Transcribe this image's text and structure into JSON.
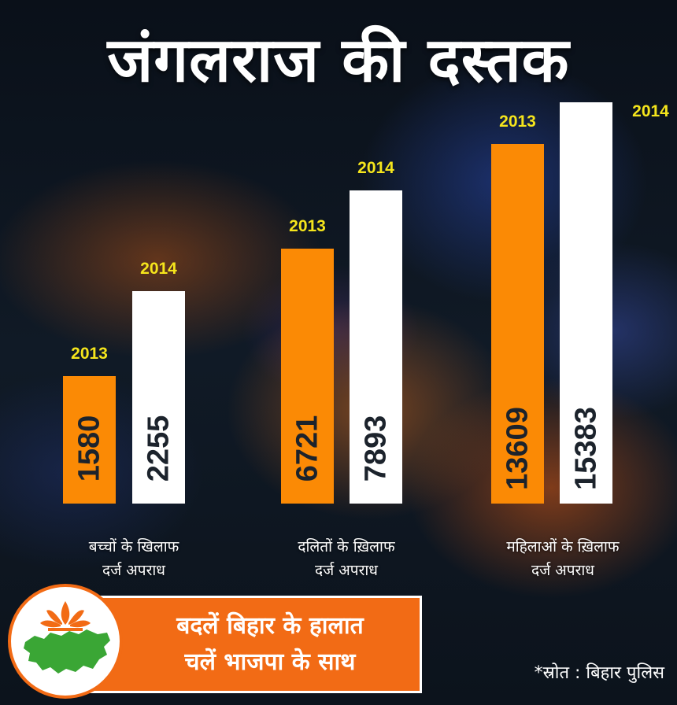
{
  "title": "जंगलराज की दस्तक",
  "chart_data": {
    "type": "bar",
    "categories": [
      "बच्चों के खिलाफ दर्ज अपराध",
      "दलितों के ख़िलाफ दर्ज अपराध",
      "महिलाओं के ख़िलाफ दर्ज अपराध"
    ],
    "series": [
      {
        "name": "2013",
        "values": [
          1580,
          6721,
          13609
        ],
        "color": "#fb8a05"
      },
      {
        "name": "2014",
        "values": [
          2255,
          7893,
          15383
        ],
        "color": "#ffffff"
      }
    ]
  },
  "categories_display": [
    {
      "line1": "बच्चों के खिलाफ",
      "line2": "दर्ज अपराध"
    },
    {
      "line1": "दलितों के ख़िलाफ",
      "line2": "दर्ज अपराध"
    },
    {
      "line1": "महिलाओं के ख़िलाफ",
      "line2": "दर्ज अपराध"
    }
  ],
  "banner": {
    "line1": "बदलें बिहार के हालात",
    "line2": "चलें भाजपा के साथ",
    "color": "#f26b15"
  },
  "logo": {
    "icon": "bjp-lotus-bihar-map-icon",
    "lotus_color": "#f26b15",
    "map_color": "#3aa635"
  },
  "source": "*स्रोत : बिहार पुलिस"
}
